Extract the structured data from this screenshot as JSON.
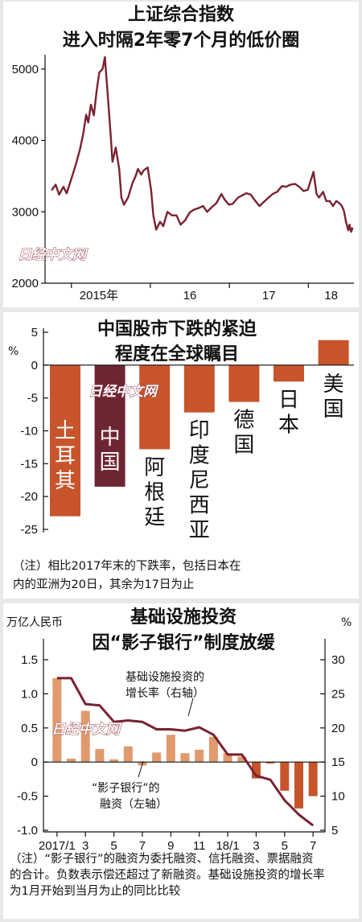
{
  "chart_data": [
    {
      "type": "line",
      "title": "上证综合指数",
      "subtitle": "进入时隔2年零7个月的低价圈",
      "ylim": [
        2000,
        5200
      ],
      "yticks": [
        "5000",
        "4000",
        "3000",
        "2000"
      ],
      "xtick_labels": [
        "2015年",
        "16",
        "17",
        "18"
      ],
      "xrange": [
        "2014-09",
        "2018-07"
      ],
      "color": "#7a2230",
      "series": [
        {
          "values": [
            [
              "2014-10-01",
              3300
            ],
            [
              "2014-10-20",
              3380
            ],
            [
              "2014-11-05",
              3240
            ],
            [
              "2014-11-25",
              3350
            ],
            [
              "2014-12-10",
              3260
            ],
            [
              "2014-12-25",
              3400
            ],
            [
              "2015-01-10",
              3550
            ],
            [
              "2015-01-25",
              3700
            ],
            [
              "2015-02-10",
              3880
            ],
            [
              "2015-02-25",
              4100
            ],
            [
              "2015-03-10",
              4360
            ],
            [
              "2015-03-20",
              4250
            ],
            [
              "2015-04-01",
              4500
            ],
            [
              "2015-04-15",
              4350
            ],
            [
              "2015-04-28",
              4700
            ],
            [
              "2015-05-10",
              4950
            ],
            [
              "2015-05-25",
              5000
            ],
            [
              "2015-06-05",
              5166
            ],
            [
              "2015-06-20",
              4550
            ],
            [
              "2015-07-01",
              4100
            ],
            [
              "2015-07-10",
              3700
            ],
            [
              "2015-07-25",
              3900
            ],
            [
              "2015-08-10",
              3600
            ],
            [
              "2015-08-20",
              3200
            ],
            [
              "2015-09-01",
              3100
            ],
            [
              "2015-09-20",
              3200
            ],
            [
              "2015-10-10",
              3400
            ],
            [
              "2015-10-25",
              3500
            ],
            [
              "2015-11-05",
              3600
            ],
            [
              "2015-11-20",
              3520
            ],
            [
              "2015-12-01",
              3580
            ],
            [
              "2015-12-20",
              3620
            ],
            [
              "2016-01-05",
              3300
            ],
            [
              "2016-01-15",
              2950
            ],
            [
              "2016-01-28",
              2750
            ],
            [
              "2016-02-15",
              2860
            ],
            [
              "2016-03-01",
              2800
            ],
            [
              "2016-03-20",
              3000
            ],
            [
              "2016-04-10",
              2950
            ],
            [
              "2016-05-01",
              2950
            ],
            [
              "2016-05-20",
              2820
            ],
            [
              "2016-06-10",
              2880
            ],
            [
              "2016-07-01",
              2990
            ],
            [
              "2016-07-20",
              3030
            ],
            [
              "2016-08-10",
              3050
            ],
            [
              "2016-09-01",
              3080
            ],
            [
              "2016-09-20",
              3000
            ],
            [
              "2016-10-10",
              3060
            ],
            [
              "2016-11-01",
              3120
            ],
            [
              "2016-11-25",
              3250
            ],
            [
              "2016-12-10",
              3170
            ],
            [
              "2016-12-30",
              3100
            ],
            [
              "2017-01-15",
              3110
            ],
            [
              "2017-02-10",
              3200
            ],
            [
              "2017-03-01",
              3230
            ],
            [
              "2017-03-20",
              3260
            ],
            [
              "2017-04-10",
              3240
            ],
            [
              "2017-05-01",
              3150
            ],
            [
              "2017-05-20",
              3080
            ],
            [
              "2017-06-10",
              3140
            ],
            [
              "2017-07-01",
              3200
            ],
            [
              "2017-07-20",
              3250
            ],
            [
              "2017-08-10",
              3280
            ],
            [
              "2017-09-01",
              3360
            ],
            [
              "2017-09-20",
              3350
            ],
            [
              "2017-10-10",
              3380
            ],
            [
              "2017-11-01",
              3390
            ],
            [
              "2017-11-20",
              3350
            ],
            [
              "2017-12-10",
              3290
            ],
            [
              "2017-12-30",
              3310
            ],
            [
              "2018-01-10",
              3420
            ],
            [
              "2018-01-25",
              3560
            ],
            [
              "2018-02-08",
              3250
            ],
            [
              "2018-02-20",
              3200
            ],
            [
              "2018-03-10",
              3280
            ],
            [
              "2018-03-25",
              3150
            ],
            [
              "2018-04-10",
              3150
            ],
            [
              "2018-04-25",
              3080
            ],
            [
              "2018-05-10",
              3150
            ],
            [
              "2018-05-25",
              3120
            ],
            [
              "2018-06-05",
              3080
            ],
            [
              "2018-06-15",
              3010
            ],
            [
              "2018-06-25",
              2850
            ],
            [
              "2018-07-05",
              2740
            ],
            [
              "2018-07-10",
              2820
            ],
            [
              "2018-07-18",
              2720
            ],
            [
              "2018-07-25",
              2780
            ]
          ]
        }
      ]
    },
    {
      "type": "bar",
      "title": "中国股市下跌的紧迫",
      "subtitle": "程度在全球瞩目",
      "ylabel": "%",
      "ylim": [
        -25,
        5
      ],
      "yticks": [
        "5",
        "0",
        "-5",
        "-10",
        "-15",
        "-20",
        "-25"
      ],
      "categories": [
        "土耳其",
        "中国",
        "阿根廷",
        "印度尼西亚",
        "德国",
        "日本",
        "美国"
      ],
      "values": [
        -23,
        -18.5,
        -12.8,
        -7.2,
        -5.6,
        -2.5,
        3.8
      ],
      "colors": [
        "#c8542c",
        "#6e2532",
        "#c8542c",
        "#c8542c",
        "#c8542c",
        "#c8542c",
        "#c8542c"
      ],
      "note": "（注）相比2017年末的下跌率，包括日本在内的亚洲为20日，其余为17日为止"
    },
    {
      "type": "bar+line",
      "title": "基础设施投资",
      "subtitle": "因“影子银行”制度放缓",
      "ylabel_left": "万亿人民币",
      "ylabel_right": "%",
      "ylim_left": [
        -1.0,
        1.5
      ],
      "ylim_right": [
        5,
        30
      ],
      "yticks_left": [
        "1.5",
        "1.0",
        "0.5",
        "0",
        "-0.5",
        "-1.0"
      ],
      "yticks_right": [
        "30",
        "25",
        "20",
        "15",
        "10",
        "5"
      ],
      "categories": [
        "2017/1",
        "2",
        "3",
        "4",
        "5",
        "6",
        "7",
        "8",
        "9",
        "10",
        "11",
        "12",
        "18/1",
        "2",
        "3",
        "4",
        "5",
        "6",
        "7"
      ],
      "xtick_labels": [
        "2017/1",
        "3",
        "5",
        "7",
        "9",
        "11",
        "18/1",
        "3",
        "5",
        "7"
      ],
      "series": [
        {
          "name": "“影子银行”的融资（左轴）",
          "type": "bar",
          "color": "#e09a6e",
          "negative_color": "#c8542c",
          "values": [
            1.23,
            0.05,
            0.75,
            0.19,
            0.04,
            0.23,
            -0.05,
            0.14,
            0.4,
            0.13,
            0.18,
            0.37,
            0.13,
            0.08,
            -0.24,
            -0.02,
            -0.42,
            -0.68,
            -0.5
          ]
        },
        {
          "name": "基础设施投资的增长率（右轴）",
          "type": "line",
          "color": "#7a2230",
          "values": [
            27.3,
            27.3,
            23.5,
            23.3,
            20.9,
            21.1,
            20.9,
            19.8,
            19.8,
            19.6,
            20.1,
            19.0,
            16.1,
            16.1,
            13.0,
            12.4,
            9.4,
            7.3,
            5.7
          ]
        }
      ],
      "annotations": [
        "基础设施投资的",
        "增长率（右轴）",
        "“影子银行”的",
        "融资（左轴）"
      ],
      "note": "（注）“影子银行”的融资为委托融资、信托融资、票据融资的合计。负数表示偿还超过了新融资。基础设施投资的增长率为1月开始到当月为止的同比比较"
    }
  ],
  "watermark": "日经中文网"
}
